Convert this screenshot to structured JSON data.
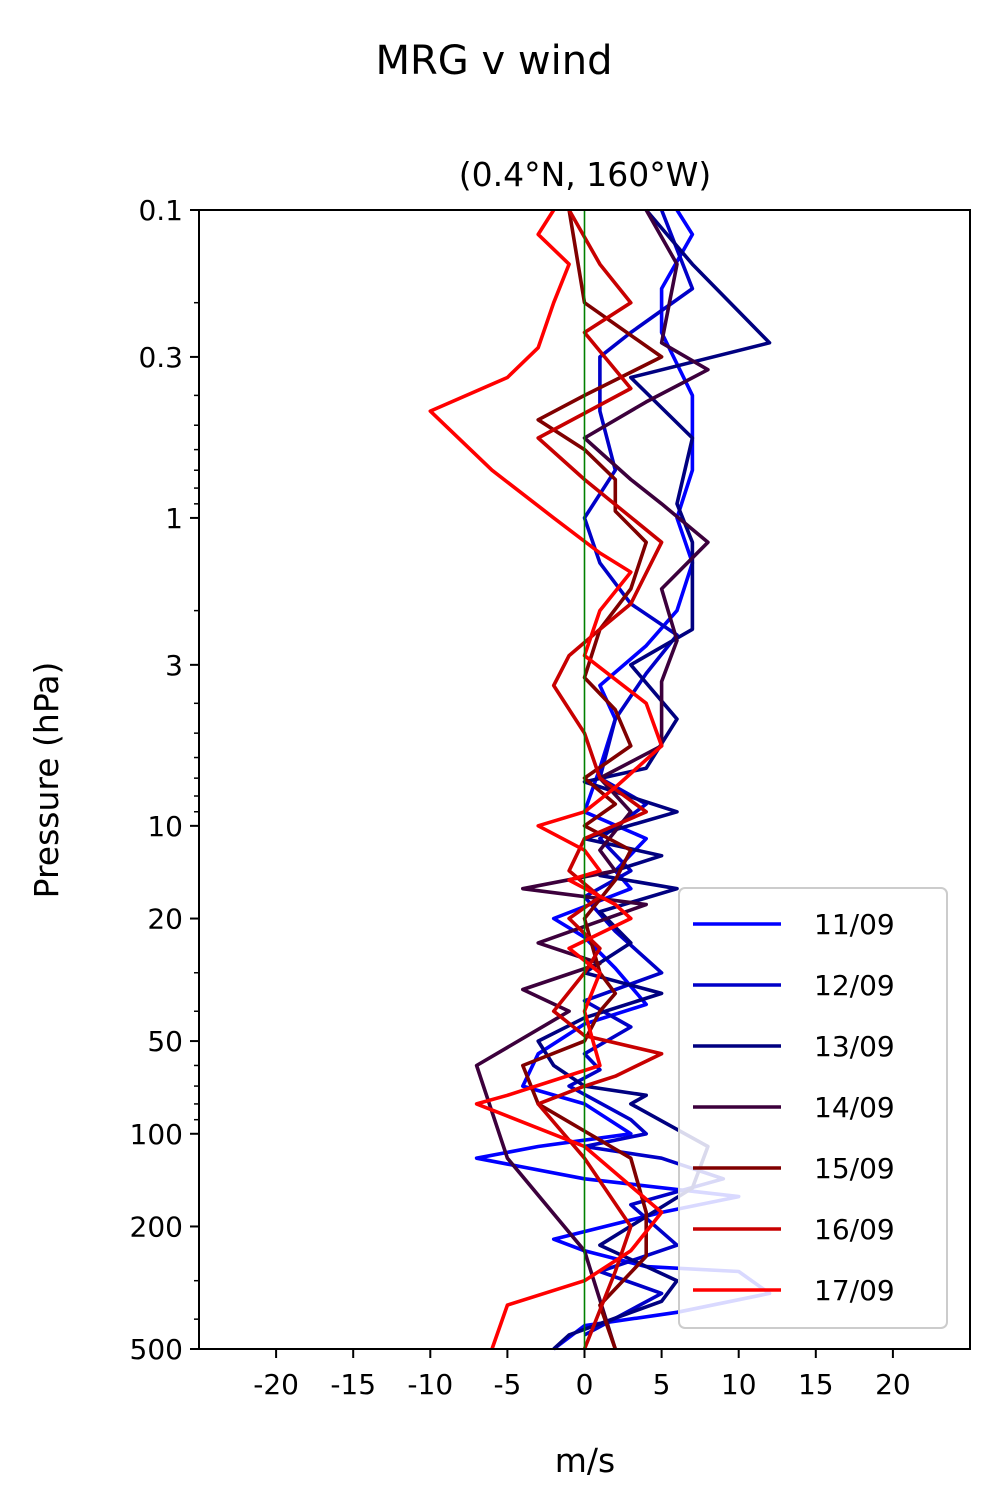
{
  "suptitle": "MRG v wind",
  "chart_data": {
    "type": "line",
    "title": "(0.4°N, 160°W)",
    "xlabel": "m/s",
    "ylabel": "Pressure (hPa)",
    "xlim": [
      -25,
      25
    ],
    "ylim": [
      500,
      0.1
    ],
    "yscale": "log",
    "xticks": [
      -20,
      -15,
      -10,
      -5,
      0,
      5,
      10,
      15,
      20
    ],
    "xtick_labels": [
      "-20",
      "-15",
      "-10",
      "-5",
      "0",
      "5",
      "10",
      "15",
      "20"
    ],
    "yticks": [
      0.1,
      0.3,
      1,
      3,
      10,
      20,
      50,
      100,
      200,
      500
    ],
    "ytick_labels": [
      "0.1",
      "0.3",
      "1",
      "3",
      "10",
      "20",
      "50",
      "100",
      "200",
      "500"
    ],
    "grid": false,
    "legend_position": "lower-right",
    "reference_line": {
      "x": 0,
      "color": "#008000"
    },
    "series": [
      {
        "name": "11/09",
        "color": "#0000ff",
        "x": [
          6,
          7,
          5,
          5,
          7,
          7,
          6,
          7,
          6,
          4,
          1,
          2,
          1,
          0,
          4,
          2,
          3,
          -2,
          0,
          2,
          4,
          0,
          -3,
          -4,
          0,
          3,
          -3,
          -7,
          0,
          10,
          5,
          -2,
          0,
          4,
          10,
          12,
          6,
          0,
          -2
        ],
        "y": [
          0.1,
          0.12,
          0.18,
          0.25,
          0.4,
          0.7,
          1.0,
          1.4,
          2.0,
          2.6,
          3.5,
          4.5,
          6.5,
          9.0,
          11,
          14,
          16,
          20,
          23,
          29,
          38,
          44,
          55,
          70,
          80,
          100,
          110,
          120,
          140,
          160,
          180,
          220,
          240,
          270,
          280,
          330,
          380,
          420,
          500
        ]
      },
      {
        "name": "12/09",
        "color": "#0000c8",
        "x": [
          5,
          7,
          3,
          1,
          1,
          2,
          0,
          1,
          3,
          6,
          4,
          2,
          1,
          4,
          1,
          3,
          0,
          2,
          5,
          0,
          3,
          0,
          1,
          -1,
          3,
          4,
          0,
          5,
          9,
          3,
          6,
          1,
          5,
          0
        ],
        "y": [
          0.1,
          0.18,
          0.25,
          0.3,
          0.45,
          0.7,
          1.0,
          1.4,
          1.9,
          2.4,
          3.2,
          4.5,
          7.0,
          8.5,
          11,
          14,
          17,
          22,
          30,
          37,
          45,
          55,
          62,
          70,
          90,
          100,
          110,
          120,
          140,
          170,
          230,
          280,
          330,
          450
        ]
      },
      {
        "name": "13/09",
        "color": "#000080",
        "x": [
          4,
          7,
          12,
          3,
          7,
          6,
          7,
          7,
          7,
          3,
          6,
          4,
          0,
          6,
          0,
          5,
          1,
          6,
          1,
          3,
          0,
          5,
          0,
          -3,
          -2,
          0,
          4,
          3,
          8,
          7,
          1,
          6,
          5,
          -1,
          -2
        ],
        "y": [
          0.1,
          0.15,
          0.27,
          0.35,
          0.55,
          0.9,
          1.2,
          1.6,
          2.3,
          3.0,
          4.5,
          6.5,
          7.2,
          9.0,
          11,
          12.5,
          14.5,
          16,
          19,
          24,
          30,
          35,
          42,
          50,
          60,
          70,
          75,
          80,
          110,
          150,
          230,
          300,
          350,
          450,
          500
        ]
      },
      {
        "name": "14/09",
        "color": "#3c003c",
        "x": [
          4,
          6,
          5,
          8,
          4,
          0,
          3,
          5,
          8,
          5,
          6,
          5,
          5,
          1,
          3,
          1,
          2,
          -4,
          4,
          -3,
          1,
          -4,
          -1,
          -7,
          -5,
          0,
          2
        ],
        "y": [
          0.1,
          0.15,
          0.27,
          0.33,
          0.42,
          0.55,
          0.75,
          0.9,
          1.2,
          1.7,
          2.5,
          3.4,
          5.5,
          7.0,
          9.0,
          12,
          14,
          16,
          18,
          24,
          28,
          34,
          40,
          60,
          120,
          240,
          500
        ]
      },
      {
        "name": "15/09",
        "color": "#800000",
        "x": [
          -1,
          0,
          5,
          0,
          -3,
          0,
          2,
          2,
          4,
          3,
          1,
          0,
          2,
          3,
          0,
          2,
          0,
          3,
          2,
          0,
          1,
          2,
          1,
          0,
          -4,
          -3,
          3,
          4,
          4,
          1,
          2
        ],
        "y": [
          0.1,
          0.2,
          0.3,
          0.4,
          0.48,
          0.6,
          0.75,
          0.95,
          1.2,
          1.7,
          2.3,
          3.3,
          4.2,
          5.5,
          7.0,
          8.5,
          10,
          12,
          15,
          20,
          30,
          35,
          40,
          50,
          60,
          80,
          120,
          180,
          250,
          360,
          500
        ]
      },
      {
        "name": "16/09",
        "color": "#c80000",
        "x": [
          -1,
          1,
          3,
          0,
          3,
          -3,
          0,
          5,
          3,
          1,
          -1,
          -2,
          0,
          1,
          4,
          0,
          -1,
          1,
          -1,
          1,
          0,
          -2,
          0,
          5,
          2,
          0,
          -3,
          0,
          3,
          2,
          0
        ],
        "y": [
          0.1,
          0.15,
          0.2,
          0.25,
          0.38,
          0.55,
          0.75,
          1.2,
          1.9,
          2.3,
          2.8,
          3.5,
          5.0,
          7.0,
          9.0,
          11,
          14,
          17,
          20,
          25,
          30,
          40,
          48,
          55,
          65,
          70,
          80,
          120,
          200,
          280,
          500
        ]
      },
      {
        "name": "17/09",
        "color": "#ff0000",
        "x": [
          -2,
          -3,
          -1,
          -2,
          -3,
          -5,
          -10,
          -6,
          -2,
          1,
          3,
          1,
          0,
          4,
          5,
          2,
          0,
          -3,
          0,
          1,
          -1,
          2,
          3,
          -1,
          1,
          0,
          1,
          -5,
          -7,
          0,
          5,
          3,
          0,
          -5,
          -6
        ],
        "y": [
          0.1,
          0.12,
          0.15,
          0.2,
          0.28,
          0.35,
          0.45,
          0.7,
          1.0,
          1.3,
          1.5,
          2.0,
          2.8,
          4.0,
          5.5,
          7.5,
          9.0,
          10,
          12,
          14,
          15,
          18,
          20,
          25,
          30,
          40,
          60,
          75,
          80,
          110,
          180,
          240,
          300,
          360,
          500
        ]
      }
    ]
  }
}
